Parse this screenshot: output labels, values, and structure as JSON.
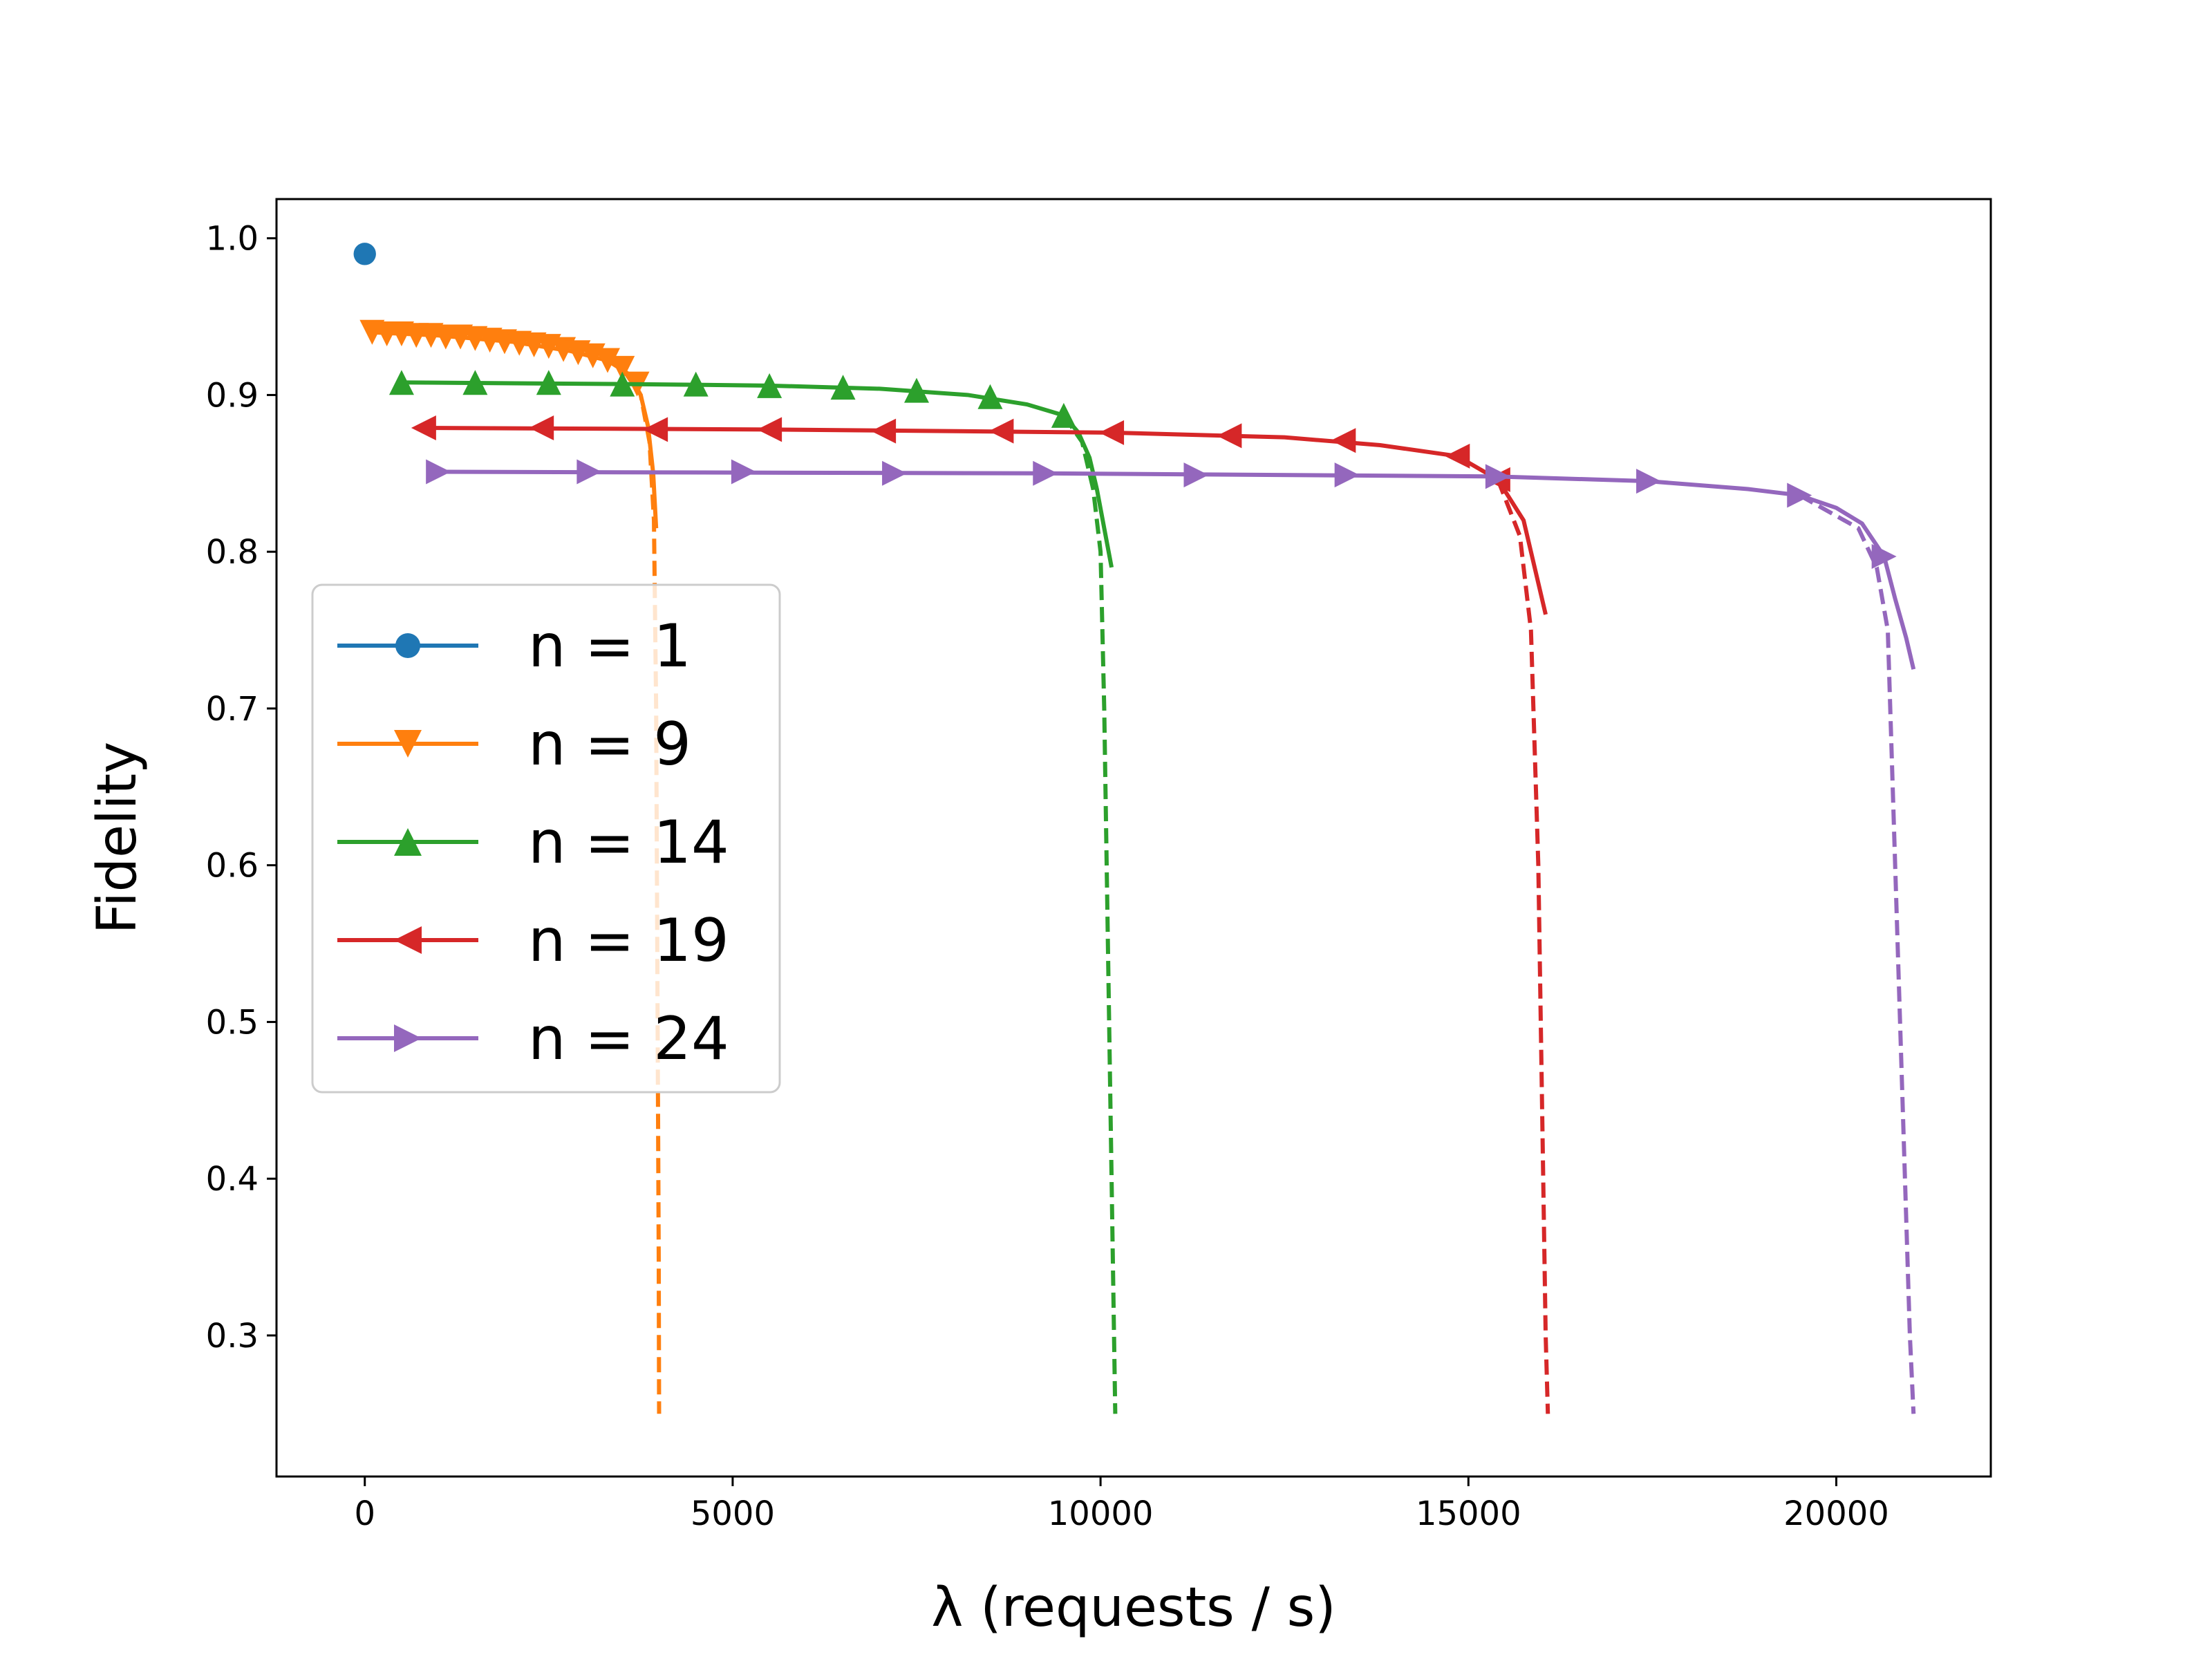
{
  "chart_data": {
    "type": "line",
    "title": "",
    "xlabel": "λ (requests / s)",
    "ylabel": "Fidelity",
    "xlim": [
      -1200,
      22100
    ],
    "ylim": [
      0.21,
      1.025
    ],
    "xticks": [
      0,
      5000,
      10000,
      15000,
      20000
    ],
    "xtick_labels": [
      "0",
      "5000",
      "10000",
      "15000",
      "20000"
    ],
    "yticks": [
      0.3,
      0.4,
      0.5,
      0.6,
      0.7,
      0.8,
      0.9,
      1.0
    ],
    "ytick_labels": [
      "0.3",
      "0.4",
      "0.5",
      "0.6",
      "0.7",
      "0.8",
      "0.9",
      "1.0"
    ],
    "grid": false,
    "legend_position": "center-left",
    "series": [
      {
        "name": "n = 1",
        "color": "#1f77b4",
        "marker": "circle",
        "markers": [
          [
            0,
            0.99
          ]
        ],
        "solid": [
          [
            0,
            0.99
          ]
        ],
        "dashed": []
      },
      {
        "name": "n = 9",
        "color": "#ff7f0e",
        "marker": "triangle-down",
        "markers": [
          [
            100,
            0.94
          ],
          [
            300,
            0.939
          ],
          [
            500,
            0.939
          ],
          [
            700,
            0.938
          ],
          [
            900,
            0.938
          ],
          [
            1100,
            0.937
          ],
          [
            1300,
            0.937
          ],
          [
            1500,
            0.936
          ],
          [
            1700,
            0.935
          ],
          [
            1900,
            0.934
          ],
          [
            2100,
            0.933
          ],
          [
            2300,
            0.932
          ],
          [
            2500,
            0.931
          ],
          [
            2700,
            0.929
          ],
          [
            2900,
            0.927
          ],
          [
            3100,
            0.925
          ],
          [
            3300,
            0.922
          ],
          [
            3500,
            0.917
          ],
          [
            3700,
            0.907
          ]
        ],
        "solid": [
          [
            100,
            0.94
          ],
          [
            1000,
            0.938
          ],
          [
            2000,
            0.934
          ],
          [
            2800,
            0.928
          ],
          [
            3300,
            0.922
          ],
          [
            3600,
            0.913
          ],
          [
            3750,
            0.9
          ],
          [
            3850,
            0.88
          ],
          [
            3920,
            0.85
          ],
          [
            3960,
            0.815
          ]
        ],
        "dashed": [
          [
            3500,
            0.917
          ],
          [
            3750,
            0.9
          ],
          [
            3870,
            0.87
          ],
          [
            3930,
            0.82
          ],
          [
            3960,
            0.7
          ],
          [
            3980,
            0.5
          ],
          [
            3995,
            0.35
          ],
          [
            4000,
            0.25
          ]
        ]
      },
      {
        "name": "n = 14",
        "color": "#2ca02c",
        "marker": "triangle-up",
        "markers": [
          [
            500,
            0.908
          ],
          [
            1500,
            0.908
          ],
          [
            2500,
            0.908
          ],
          [
            3500,
            0.907
          ],
          [
            4500,
            0.907
          ],
          [
            5500,
            0.906
          ],
          [
            6500,
            0.905
          ],
          [
            7500,
            0.903
          ],
          [
            8500,
            0.899
          ],
          [
            9500,
            0.887
          ]
        ],
        "solid": [
          [
            500,
            0.908
          ],
          [
            3500,
            0.907
          ],
          [
            5500,
            0.906
          ],
          [
            7000,
            0.904
          ],
          [
            8200,
            0.9
          ],
          [
            9000,
            0.894
          ],
          [
            9500,
            0.887
          ],
          [
            9700,
            0.876
          ],
          [
            9850,
            0.86
          ],
          [
            9950,
            0.84
          ],
          [
            10050,
            0.815
          ],
          [
            10150,
            0.79
          ]
        ],
        "dashed": [
          [
            9500,
            0.887
          ],
          [
            9750,
            0.87
          ],
          [
            9900,
            0.84
          ],
          [
            10000,
            0.8
          ],
          [
            10050,
            0.7
          ],
          [
            10100,
            0.55
          ],
          [
            10150,
            0.4
          ],
          [
            10200,
            0.25
          ]
        ]
      },
      {
        "name": "n = 19",
        "color": "#d62728",
        "marker": "triangle-left",
        "markers": [
          [
            800,
            0.879
          ],
          [
            2400,
            0.879
          ],
          [
            3950,
            0.878
          ],
          [
            5500,
            0.878
          ],
          [
            7050,
            0.877
          ],
          [
            8650,
            0.877
          ],
          [
            10150,
            0.876
          ],
          [
            11750,
            0.874
          ],
          [
            13300,
            0.871
          ],
          [
            14850,
            0.861
          ],
          [
            15400,
            0.846
          ]
        ],
        "solid": [
          [
            800,
            0.879
          ],
          [
            5500,
            0.878
          ],
          [
            10150,
            0.876
          ],
          [
            12500,
            0.873
          ],
          [
            13800,
            0.868
          ],
          [
            14850,
            0.861
          ],
          [
            15400,
            0.846
          ],
          [
            15750,
            0.82
          ],
          [
            15900,
            0.79
          ],
          [
            16050,
            0.76
          ]
        ],
        "dashed": [
          [
            15400,
            0.846
          ],
          [
            15700,
            0.81
          ],
          [
            15850,
            0.75
          ],
          [
            15950,
            0.6
          ],
          [
            16000,
            0.45
          ],
          [
            16050,
            0.3
          ],
          [
            16080,
            0.25
          ]
        ]
      },
      {
        "name": "n = 24",
        "color": "#9467bd",
        "marker": "triangle-right",
        "markers": [
          [
            1000,
            0.851
          ],
          [
            3050,
            0.851
          ],
          [
            5150,
            0.851
          ],
          [
            7200,
            0.85
          ],
          [
            9250,
            0.85
          ],
          [
            11300,
            0.849
          ],
          [
            13350,
            0.849
          ],
          [
            15400,
            0.848
          ],
          [
            17450,
            0.845
          ],
          [
            19500,
            0.836
          ],
          [
            20650,
            0.797
          ]
        ],
        "solid": [
          [
            1000,
            0.851
          ],
          [
            9250,
            0.85
          ],
          [
            15400,
            0.848
          ],
          [
            17450,
            0.845
          ],
          [
            18800,
            0.84
          ],
          [
            19500,
            0.836
          ],
          [
            20000,
            0.828
          ],
          [
            20350,
            0.818
          ],
          [
            20650,
            0.797
          ],
          [
            20800,
            0.77
          ],
          [
            20950,
            0.745
          ],
          [
            21050,
            0.725
          ]
        ],
        "dashed": [
          [
            19500,
            0.836
          ],
          [
            20300,
            0.815
          ],
          [
            20550,
            0.79
          ],
          [
            20700,
            0.75
          ],
          [
            20800,
            0.6
          ],
          [
            20900,
            0.45
          ],
          [
            21000,
            0.3
          ],
          [
            21050,
            0.25
          ]
        ]
      }
    ]
  }
}
